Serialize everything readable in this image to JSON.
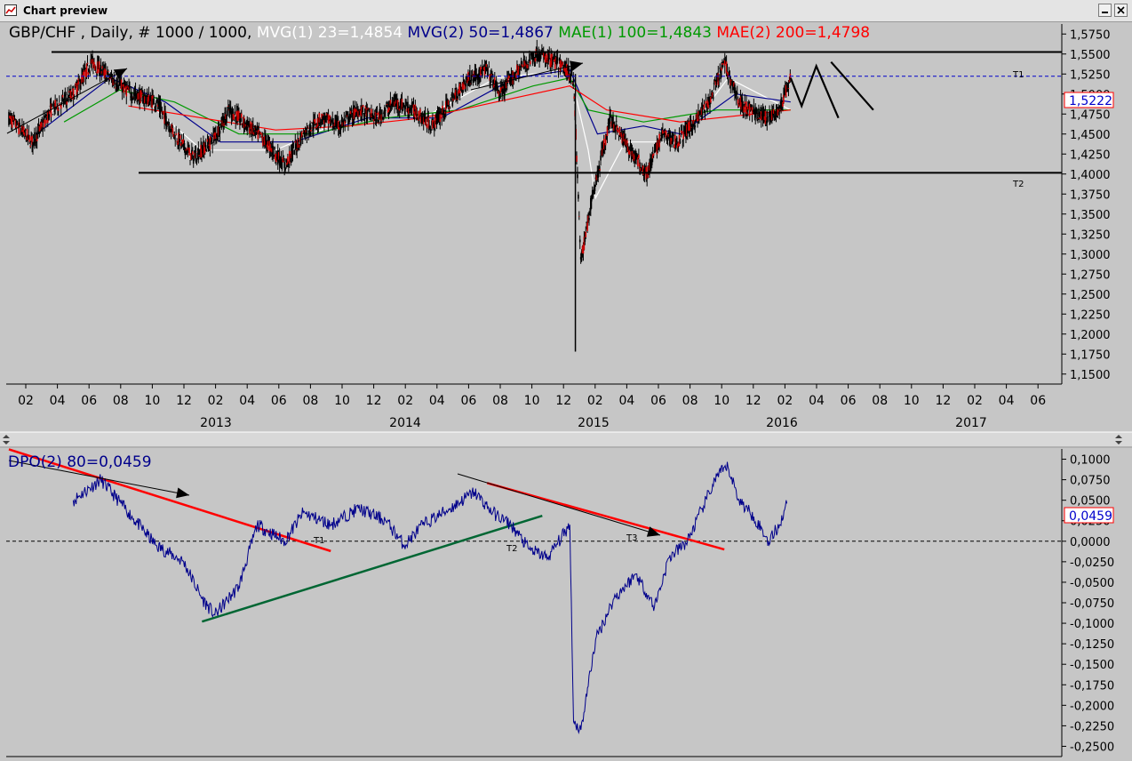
{
  "window": {
    "title": "Chart preview"
  },
  "top_panel": {
    "header": {
      "symbol_text": "GBP/CHF , Daily, # 1000 / 1000, ",
      "mvg1": "MVG(1) 23=1,4854",
      "mvg2": "MVG(2) 50=1,4867",
      "mae1": "MAE(1) 100=1,4843",
      "mae2": "MAE(2) 200=1,4798"
    },
    "price_box": "1,5222",
    "line_labels": {
      "t1": "T1",
      "t2": "T2"
    },
    "colors": {
      "mvg1": "#ffffff",
      "mvg2": "#00008b",
      "mae1": "#009900",
      "mae2": "#ff0000",
      "price": "#0000cc",
      "candles": "#000000"
    }
  },
  "bottom_panel": {
    "header": "DPO(2) 80=0,0459",
    "value_box": "0,0459",
    "labels": {
      "t1": "T1",
      "t2": "T2",
      "t3": "T3"
    }
  },
  "chart_data": [
    {
      "type": "candlestick",
      "title": "GBP/CHF , Daily",
      "ylim": [
        1.1375,
        1.5875
      ],
      "y_ticks": [
        "1,5750",
        "1,5500",
        "1,5250",
        "1,5000",
        "1,4750",
        "1,4500",
        "1,4250",
        "1,4000",
        "1,3750",
        "1,3500",
        "1,3250",
        "1,3000",
        "1,2750",
        "1,2500",
        "1,2250",
        "1,2000",
        "1,1750",
        "1,1500"
      ],
      "x_month_ticks": [
        "02",
        "04",
        "06",
        "08",
        "10",
        "12",
        "02",
        "04",
        "06",
        "08",
        "10",
        "12",
        "02",
        "04",
        "06",
        "08",
        "10",
        "12",
        "02",
        "04",
        "06",
        "08",
        "10",
        "12",
        "02",
        "04",
        "06",
        "08",
        "10",
        "12",
        "02",
        "04",
        "06"
      ],
      "x_year_labels": [
        "2013",
        "2014",
        "2015",
        "2016",
        "2017"
      ],
      "price_path": [
        [
          2012.95,
          1.47
        ],
        [
          2013.08,
          1.44
        ],
        [
          2013.18,
          1.48
        ],
        [
          2013.3,
          1.5
        ],
        [
          2013.4,
          1.54
        ],
        [
          2013.5,
          1.52
        ],
        [
          2013.62,
          1.5
        ],
        [
          2013.75,
          1.49
        ],
        [
          2013.85,
          1.45
        ],
        [
          2013.95,
          1.42
        ],
        [
          2014.05,
          1.44
        ],
        [
          2014.15,
          1.48
        ],
        [
          2014.25,
          1.46
        ],
        [
          2014.35,
          1.44
        ],
        [
          2014.45,
          1.41
        ],
        [
          2014.55,
          1.45
        ],
        [
          2014.65,
          1.47
        ],
        [
          2014.75,
          1.46
        ],
        [
          2014.85,
          1.48
        ],
        [
          2014.95,
          1.47
        ],
        [
          2015.05,
          1.49
        ],
        [
          2015.15,
          1.48
        ],
        [
          2015.25,
          1.46
        ],
        [
          2015.35,
          1.49
        ],
        [
          2015.45,
          1.52
        ],
        [
          2015.55,
          1.53
        ],
        [
          2015.62,
          1.5
        ],
        [
          2015.72,
          1.53
        ],
        [
          2015.82,
          1.55
        ],
        [
          2015.92,
          1.54
        ],
        [
          2015.98,
          1.53
        ],
        [
          2016.02,
          1.52
        ],
        [
          2016.06,
          1.29
        ],
        [
          2016.12,
          1.37
        ],
        [
          2016.22,
          1.47
        ],
        [
          2016.3,
          1.44
        ],
        [
          2016.36,
          1.42
        ],
        [
          2016.42,
          1.4
        ],
        [
          2016.5,
          1.45
        ],
        [
          2016.58,
          1.44
        ],
        [
          2016.66,
          1.46
        ],
        [
          2016.76,
          1.49
        ],
        [
          2016.84,
          1.54
        ],
        [
          2016.92,
          1.49
        ],
        [
          2016.98,
          1.48
        ],
        [
          2017.06,
          1.47
        ],
        [
          2017.14,
          1.48
        ],
        [
          2017.2,
          1.52
        ]
      ],
      "series": [
        {
          "name": "MVG(1) 23=1,4854",
          "color": "#ffffff",
          "values": [
            [
              2013.15,
              1.47
            ],
            [
              2013.4,
              1.53
            ],
            [
              2013.7,
              1.49
            ],
            [
              2014.0,
              1.43
            ],
            [
              2014.4,
              1.43
            ],
            [
              2014.8,
              1.47
            ],
            [
              2015.2,
              1.47
            ],
            [
              2015.6,
              1.52
            ],
            [
              2016.0,
              1.53
            ],
            [
              2016.1,
              1.43
            ],
            [
              2016.14,
              1.37
            ],
            [
              2016.3,
              1.44
            ],
            [
              2016.6,
              1.44
            ],
            [
              2016.86,
              1.52
            ],
            [
              2017.2,
              1.48
            ]
          ]
        },
        {
          "name": "MVG(2) 50=1,4867",
          "color": "#00008b",
          "values": [
            [
              2013.1,
              1.45
            ],
            [
              2013.5,
              1.52
            ],
            [
              2013.8,
              1.49
            ],
            [
              2014.1,
              1.44
            ],
            [
              2014.5,
              1.44
            ],
            [
              2014.9,
              1.47
            ],
            [
              2015.3,
              1.47
            ],
            [
              2015.7,
              1.52
            ],
            [
              2016.0,
              1.53
            ],
            [
              2016.15,
              1.45
            ],
            [
              2016.4,
              1.46
            ],
            [
              2016.6,
              1.45
            ],
            [
              2016.9,
              1.5
            ],
            [
              2017.2,
              1.49
            ]
          ]
        },
        {
          "name": "MAE(1) 100=1,4843",
          "color": "#009900",
          "values": [
            [
              2013.25,
              1.465
            ],
            [
              2013.55,
              1.505
            ],
            [
              2013.85,
              1.49
            ],
            [
              2014.2,
              1.45
            ],
            [
              2014.6,
              1.45
            ],
            [
              2015.0,
              1.47
            ],
            [
              2015.4,
              1.48
            ],
            [
              2015.8,
              1.51
            ],
            [
              2016.0,
              1.52
            ],
            [
              2016.1,
              1.48
            ],
            [
              2016.4,
              1.465
            ],
            [
              2016.8,
              1.48
            ],
            [
              2017.2,
              1.48
            ]
          ]
        },
        {
          "name": "MAE(2) 200=1,4798",
          "color": "#ff0000",
          "values": [
            [
              2013.6,
              1.485
            ],
            [
              2014.0,
              1.47
            ],
            [
              2014.4,
              1.455
            ],
            [
              2014.8,
              1.46
            ],
            [
              2015.2,
              1.47
            ],
            [
              2015.6,
              1.49
            ],
            [
              2016.0,
              1.51
            ],
            [
              2016.2,
              1.48
            ],
            [
              2016.6,
              1.465
            ],
            [
              2017.2,
              1.48
            ]
          ]
        }
      ],
      "levels": {
        "t1": 1.5525,
        "t2": 1.4015,
        "current": 1.5222
      },
      "annotations": {
        "forecast_path": [
          [
            2017.2,
            1.52
          ],
          [
            2017.26,
            1.485
          ],
          [
            2017.34,
            1.535
          ],
          [
            2017.46,
            1.47
          ]
        ],
        "forecast_path2": [
          [
            2017.42,
            1.54
          ],
          [
            2017.65,
            1.48
          ]
        ]
      }
    },
    {
      "type": "line",
      "title": "DPO(2) 80=0,0459",
      "ylim": [
        -0.2625,
        0.1125
      ],
      "y_ticks": [
        "0,1000",
        "0,0750",
        "0,0500",
        "0,0250",
        "0,0000",
        "-0,0250",
        "-0,0500",
        "-0,0750",
        "-0,1000",
        "-0,1250",
        "-0,1500",
        "-0,1750",
        "-0,2000",
        "-0,2250",
        "-0,2500"
      ],
      "series": [
        {
          "name": "DPO(2) 80=0,0459",
          "color": "#00008b",
          "values": [
            [
              2013.3,
              0.05
            ],
            [
              2013.45,
              0.075
            ],
            [
              2013.6,
              0.035
            ],
            [
              2013.75,
              -0.005
            ],
            [
              2013.9,
              -0.025
            ],
            [
              2014.0,
              -0.07
            ],
            [
              2014.07,
              -0.09
            ],
            [
              2014.2,
              -0.055
            ],
            [
              2014.3,
              0.02
            ],
            [
              2014.45,
              0.0
            ],
            [
              2014.55,
              0.035
            ],
            [
              2014.7,
              0.02
            ],
            [
              2014.85,
              0.04
            ],
            [
              2015.0,
              0.025
            ],
            [
              2015.1,
              -0.005
            ],
            [
              2015.2,
              0.02
            ],
            [
              2015.35,
              0.04
            ],
            [
              2015.48,
              0.06
            ],
            [
              2015.58,
              0.035
            ],
            [
              2015.68,
              0.02
            ],
            [
              2015.78,
              -0.01
            ],
            [
              2015.88,
              -0.02
            ],
            [
              2016.0,
              0.02
            ],
            [
              2016.02,
              -0.22
            ],
            [
              2016.06,
              -0.23
            ],
            [
              2016.14,
              -0.12
            ],
            [
              2016.24,
              -0.07
            ],
            [
              2016.36,
              -0.04
            ],
            [
              2016.46,
              -0.08
            ],
            [
              2016.54,
              -0.02
            ],
            [
              2016.64,
              0.0
            ],
            [
              2016.72,
              0.04
            ],
            [
              2016.8,
              0.08
            ],
            [
              2016.86,
              0.09
            ],
            [
              2016.92,
              0.05
            ],
            [
              2017.0,
              0.03
            ],
            [
              2017.08,
              0.0
            ],
            [
              2017.14,
              0.02
            ],
            [
              2017.18,
              0.046
            ]
          ]
        }
      ],
      "trendlines": [
        {
          "color": "#ff0000",
          "from": [
            2012.95,
            0.112
          ],
          "to": [
            2014.7,
            -0.012
          ]
        },
        {
          "color": "#006633",
          "from": [
            2014.0,
            -0.098
          ],
          "to": [
            2015.85,
            0.031
          ]
        },
        {
          "color": "#ff0000",
          "from": [
            2015.55,
            0.071
          ],
          "to": [
            2016.84,
            -0.01
          ]
        }
      ]
    }
  ]
}
